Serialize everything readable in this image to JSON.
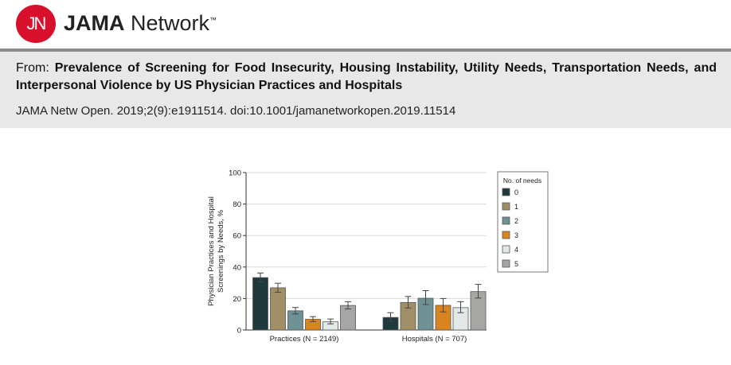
{
  "header": {
    "logo_text": "JN",
    "brand_bold": "JAMA",
    "brand_rest": " Network",
    "tm": "™"
  },
  "article": {
    "from_label": "From: ",
    "title": "Prevalence of Screening for Food Insecurity, Housing Instability, Utility Needs, Transportation Needs, and Interpersonal Violence by US Physician Practices and Hospitals",
    "citation": "JAMA Netw Open. 2019;2(9):e1911514. doi:10.1001/jamanetworkopen.2019.11514"
  },
  "chart_data": {
    "type": "bar",
    "title": "",
    "xlabel": "",
    "ylabel": "Physician Practices and Hospital Screenings by Needs, %",
    "ylim": [
      0,
      100
    ],
    "yticks": [
      0,
      20,
      40,
      60,
      80,
      100
    ],
    "grid": true,
    "legend_title": "No. of needs",
    "legend_position": "right",
    "categories": [
      "Practices (N = 2149)",
      "Hospitals (N = 707)"
    ],
    "series": [
      {
        "name": "0",
        "color": "#1f3a3d",
        "values": [
          33.3,
          8.0
        ],
        "ci": [
          [
            30.5,
            36.2
          ],
          [
            5.6,
            11.0
          ]
        ]
      },
      {
        "name": "1",
        "color": "#a08f66",
        "values": [
          26.8,
          17.5
        ],
        "ci": [
          [
            24.0,
            29.7
          ],
          [
            14.0,
            21.3
          ]
        ]
      },
      {
        "name": "2",
        "color": "#6e9293",
        "values": [
          12.2,
          20.2
        ],
        "ci": [
          [
            10.2,
            14.3
          ],
          [
            16.2,
            25.0
          ]
        ]
      },
      {
        "name": "3",
        "color": "#da8420",
        "values": [
          6.8,
          15.7
        ],
        "ci": [
          [
            5.4,
            8.5
          ],
          [
            11.5,
            20.0
          ]
        ]
      },
      {
        "name": "4",
        "color": "#e3e9e9",
        "values": [
          5.2,
          14.2
        ],
        "ci": [
          [
            3.9,
            7.0
          ],
          [
            11.0,
            18.0
          ]
        ]
      },
      {
        "name": "5",
        "color": "#a6a6a4",
        "values": [
          15.6,
          24.4
        ],
        "ci": [
          [
            13.4,
            18.0
          ],
          [
            20.3,
            29.0
          ]
        ]
      }
    ]
  }
}
